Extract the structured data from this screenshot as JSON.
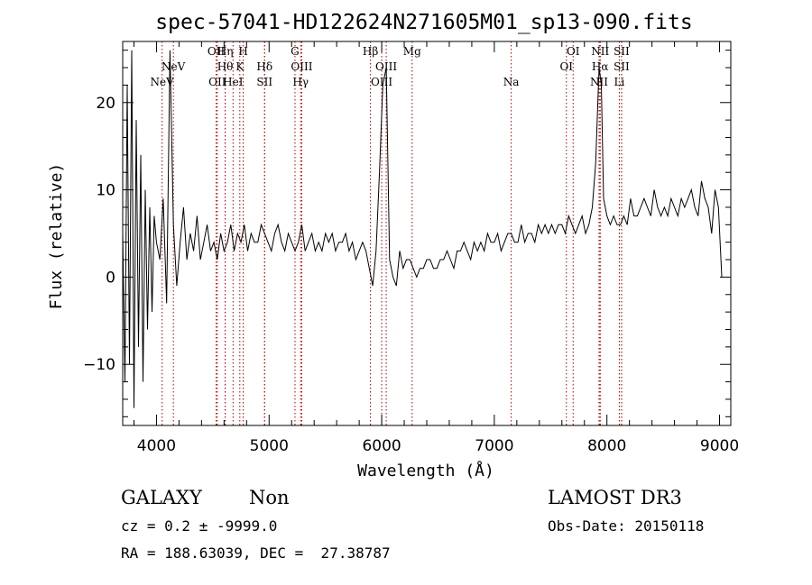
{
  "chart_data": {
    "type": "line",
    "title": "spec-57041-HD122624N271605M01_sp13-090.fits",
    "xlabel": "Wavelength (Å)",
    "ylabel": "Flux (relative)",
    "xlim": [
      3700,
      9100
    ],
    "ylim": [
      -17,
      27
    ],
    "xticks": [
      4000,
      5000,
      6000,
      7000,
      8000,
      9000
    ],
    "yticks": [
      -10,
      0,
      10,
      20
    ],
    "tick_labels_x": [
      "4000",
      "5000",
      "6000",
      "7000",
      "8000",
      "9000"
    ],
    "tick_labels_y": [
      "−10",
      "0",
      "10",
      "20"
    ],
    "grid": false,
    "line_color": "#000000",
    "marker_color": "#aa0000",
    "series": [
      {
        "x": [
          3700,
          3720,
          3740,
          3760,
          3780,
          3800,
          3820,
          3840,
          3860,
          3880,
          3900,
          3920,
          3940,
          3960,
          3980,
          4000,
          4030,
          4060,
          4090,
          4120,
          4150,
          4180,
          4210,
          4240,
          4270,
          4300,
          4330,
          4360,
          4390,
          4420,
          4450,
          4480,
          4510,
          4540,
          4570,
          4600,
          4630,
          4660,
          4690,
          4720,
          4750,
          4780,
          4810,
          4840,
          4870,
          4900,
          4930,
          4960,
          4990,
          5020,
          5050,
          5080,
          5110,
          5140,
          5170,
          5200,
          5230,
          5260,
          5290,
          5320,
          5350,
          5380,
          5410,
          5440,
          5470,
          5500,
          5530,
          5560,
          5590,
          5620,
          5650,
          5680,
          5710,
          5740,
          5770,
          5800,
          5830,
          5860,
          5890,
          5920,
          5950,
          5980,
          6010,
          6040,
          6070,
          6100,
          6130,
          6160,
          6190,
          6220,
          6250,
          6280,
          6310,
          6340,
          6370,
          6400,
          6430,
          6460,
          6490,
          6520,
          6550,
          6580,
          6610,
          6640,
          6670,
          6700,
          6730,
          6760,
          6790,
          6820,
          6850,
          6880,
          6910,
          6940,
          6970,
          7000,
          7030,
          7060,
          7090,
          7120,
          7150,
          7180,
          7210,
          7240,
          7270,
          7300,
          7330,
          7360,
          7390,
          7420,
          7450,
          7480,
          7510,
          7540,
          7570,
          7600,
          7630,
          7660,
          7690,
          7720,
          7750,
          7780,
          7810,
          7840,
          7870,
          7900,
          7930,
          7950,
          7970,
          8000,
          8030,
          8060,
          8090,
          8120,
          8150,
          8180,
          8210,
          8240,
          8270,
          8300,
          8330,
          8360,
          8390,
          8420,
          8450,
          8480,
          8510,
          8540,
          8570,
          8600,
          8630,
          8660,
          8690,
          8720,
          8750,
          8780,
          8810,
          8840,
          8870,
          8900,
          8930,
          8960,
          8990,
          9020
        ],
        "y": [
          5,
          -12,
          22,
          -10,
          26,
          -15,
          18,
          -8,
          14,
          -12,
          10,
          -6,
          8,
          -4,
          7,
          4,
          2,
          9,
          -3,
          26,
          6,
          -1,
          4,
          8,
          2,
          5,
          3,
          7,
          2,
          4,
          6,
          3,
          4,
          2,
          5,
          3,
          4,
          6,
          3,
          5,
          4,
          6,
          3,
          5,
          4,
          4,
          6,
          5,
          4,
          3,
          5,
          6,
          4,
          3,
          5,
          4,
          3,
          4,
          6,
          3,
          4,
          5,
          3,
          4,
          3,
          5,
          4,
          5,
          3,
          4,
          4,
          5,
          3,
          4,
          2,
          3,
          4,
          3,
          1,
          -1,
          3,
          12,
          22,
          24,
          2,
          0,
          -1,
          3,
          1,
          2,
          2,
          1,
          0,
          1,
          1,
          2,
          2,
          1,
          1,
          2,
          2,
          3,
          2,
          1,
          3,
          3,
          4,
          3,
          2,
          4,
          3,
          4,
          3,
          5,
          4,
          4,
          5,
          3,
          4,
          5,
          5,
          4,
          4,
          6,
          4,
          5,
          5,
          4,
          6,
          5,
          6,
          5,
          6,
          5,
          6,
          6,
          5,
          7,
          6,
          5,
          6,
          7,
          5,
          6,
          8,
          13,
          24,
          22,
          9,
          7,
          6,
          7,
          6,
          6,
          7,
          6,
          9,
          7,
          7,
          8,
          9,
          8,
          7,
          10,
          8,
          7,
          8,
          7,
          9,
          8,
          7,
          9,
          8,
          9,
          10,
          8,
          7,
          11,
          9,
          8,
          5,
          10,
          8,
          0
        ]
      }
    ],
    "line_markers": [
      {
        "x": 4050,
        "label": "NeV",
        "row": 3
      },
      {
        "x": 4150,
        "label": "NeV",
        "row": 2
      },
      {
        "x": 4530,
        "label": "OII",
        "row": 1
      },
      {
        "x": 4540,
        "label": "OII",
        "row": 3
      },
      {
        "x": 4610,
        "label": "Hη",
        "row": 1
      },
      {
        "x": 4610,
        "label": "Hθ",
        "row": 2
      },
      {
        "x": 4680,
        "label": "HeI",
        "row": 3
      },
      {
        "x": 4770,
        "label": "H",
        "row": 1
      },
      {
        "x": 4740,
        "label": "K",
        "row": 2
      },
      {
        "x": 4960,
        "label": "Hδ",
        "row": 2
      },
      {
        "x": 4960,
        "label": "SII",
        "row": 3
      },
      {
        "x": 5230,
        "label": "G",
        "row": 1
      },
      {
        "x": 5290,
        "label": "OIII",
        "row": 2
      },
      {
        "x": 5280,
        "label": "Hγ",
        "row": 3
      },
      {
        "x": 5900,
        "label": "Hβ",
        "row": 1
      },
      {
        "x": 6040,
        "label": "OIII",
        "row": 2
      },
      {
        "x": 6000,
        "label": "OIII",
        "row": 3
      },
      {
        "x": 6270,
        "label": "Mg",
        "row": 1
      },
      {
        "x": 7150,
        "label": "Na",
        "row": 3
      },
      {
        "x": 7700,
        "label": "OI",
        "row": 1
      },
      {
        "x": 7640,
        "label": "OI",
        "row": 2
      },
      {
        "x": 7940,
        "label": "NII",
        "row": 1
      },
      {
        "x": 7940,
        "label": "Hα",
        "row": 2
      },
      {
        "x": 7930,
        "label": "NII",
        "row": 3
      },
      {
        "x": 8130,
        "label": "SII",
        "row": 1
      },
      {
        "x": 8130,
        "label": "SII",
        "row": 2
      },
      {
        "x": 8110,
        "label": "Li",
        "row": 3
      }
    ]
  },
  "footer": {
    "object_class": "GALAXY",
    "subclass": "Non",
    "survey": "LAMOST DR3",
    "cz_text": "cz = 0.2 ± -9999.0",
    "obs_date": "Obs-Date: 20150118",
    "coords": "RA = 188.63039, DEC =  27.38787"
  }
}
